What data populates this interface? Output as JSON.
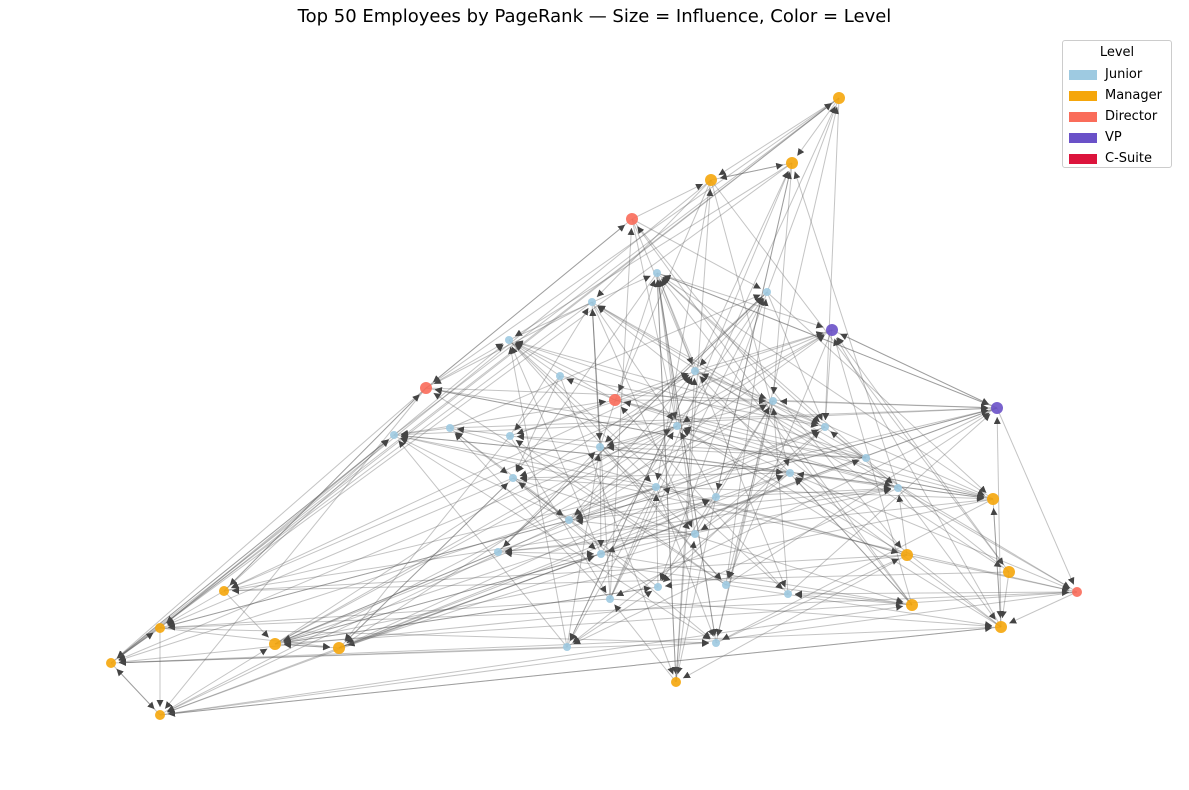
{
  "title": "Top 50 Employees by PageRank — Size = Influence, Color = Level",
  "legend": {
    "title": "Level",
    "items": [
      {
        "label": "Junior",
        "color": "#9ecae1"
      },
      {
        "label": "Manager",
        "color": "#f5a60b"
      },
      {
        "label": "Director",
        "color": "#fa6c5a"
      },
      {
        "label": "VP",
        "color": "#6a51c8"
      },
      {
        "label": "C-Suite",
        "color": "#dc143c"
      }
    ]
  },
  "edge_color": "#555555"
}
